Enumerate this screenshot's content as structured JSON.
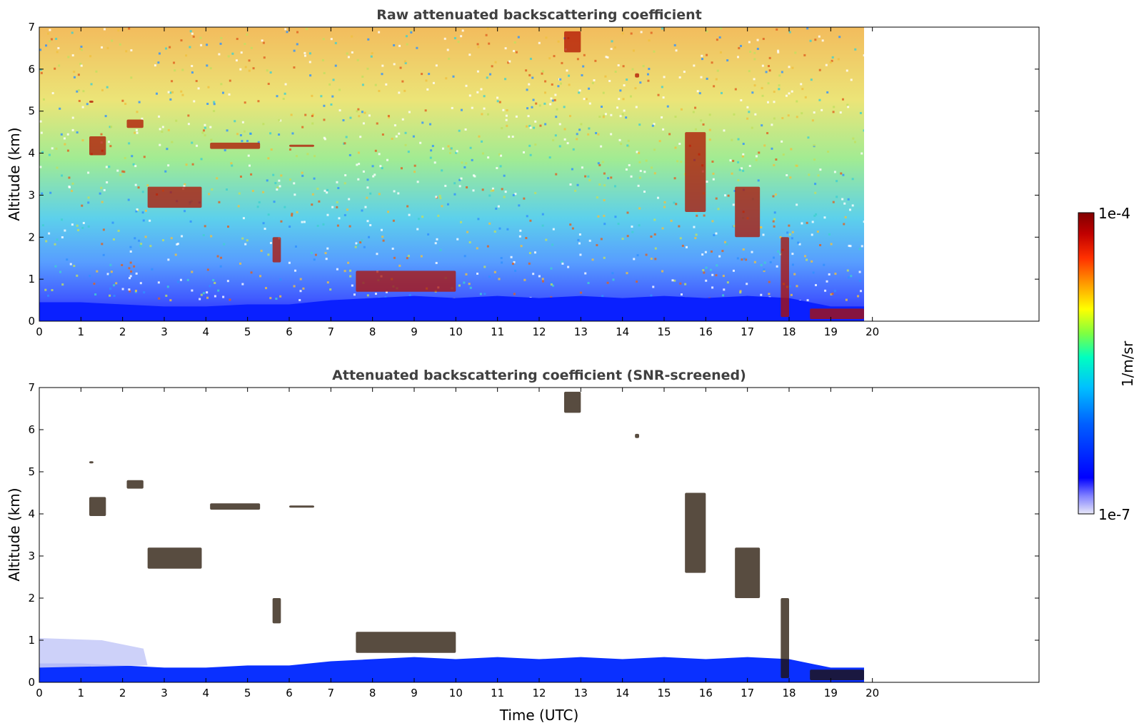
{
  "chart_data": [
    {
      "type": "heatmap",
      "title": "Raw attenuated backscattering coefficient",
      "xlabel": "",
      "ylabel": "Altitude (km)",
      "xlim": [
        0,
        24
      ],
      "ylim": [
        0,
        7
      ],
      "x_ticks": [
        "0",
        "1",
        "2",
        "3",
        "4",
        "5",
        "6",
        "7",
        "8",
        "9",
        "10",
        "11",
        "12",
        "13",
        "14",
        "15",
        "16",
        "17",
        "18",
        "19",
        "20"
      ],
      "y_ticks": [
        "0",
        "1",
        "2",
        "3",
        "4",
        "5",
        "6",
        "7"
      ],
      "data_end_time_utc": 19.8,
      "colormap": "jet",
      "scale": "log",
      "boundary_layer_top_km": [
        [
          0,
          0.45
        ],
        [
          1,
          0.45
        ],
        [
          2,
          0.4
        ],
        [
          3,
          0.35
        ],
        [
          4,
          0.35
        ],
        [
          5,
          0.4
        ],
        [
          6,
          0.4
        ],
        [
          7,
          0.5
        ],
        [
          8,
          0.55
        ],
        [
          9,
          0.6
        ],
        [
          10,
          0.55
        ],
        [
          11,
          0.6
        ],
        [
          12,
          0.55
        ],
        [
          13,
          0.6
        ],
        [
          14,
          0.55
        ],
        [
          15,
          0.6
        ],
        [
          16,
          0.55
        ],
        [
          17,
          0.6
        ],
        [
          18,
          0.55
        ],
        [
          19,
          0.35
        ],
        [
          19.8,
          0.35
        ]
      ],
      "cloud_features": [
        {
          "t": [
            1.2,
            1.3
          ],
          "z": [
            5.2,
            5.25
          ]
        },
        {
          "t": [
            1.2,
            1.6
          ],
          "z": [
            3.95,
            4.4
          ]
        },
        {
          "t": [
            2.1,
            2.5
          ],
          "z": [
            4.6,
            4.8
          ]
        },
        {
          "t": [
            2.6,
            3.9
          ],
          "z": [
            2.7,
            3.2
          ]
        },
        {
          "t": [
            4.1,
            5.3
          ],
          "z": [
            4.1,
            4.25
          ]
        },
        {
          "t": [
            6.0,
            6.6
          ],
          "z": [
            4.15,
            4.2
          ]
        },
        {
          "t": [
            5.6,
            5.8
          ],
          "z": [
            1.4,
            2.0
          ]
        },
        {
          "t": [
            7.6,
            10.0
          ],
          "z": [
            0.7,
            1.2
          ]
        },
        {
          "t": [
            12.6,
            13.0
          ],
          "z": [
            6.4,
            6.9
          ]
        },
        {
          "t": [
            14.3,
            14.4
          ],
          "z": [
            5.8,
            5.9
          ]
        },
        {
          "t": [
            15.5,
            16.0
          ],
          "z": [
            2.6,
            4.5
          ]
        },
        {
          "t": [
            16.7,
            17.3
          ],
          "z": [
            2.0,
            3.2
          ]
        },
        {
          "t": [
            17.8,
            18.0
          ],
          "z": [
            0.1,
            2.0
          ]
        },
        {
          "t": [
            18.5,
            19.8
          ],
          "z": [
            0.05,
            0.3
          ]
        }
      ]
    },
    {
      "type": "heatmap",
      "title": "Attenuated backscattering coefficient (SNR-screened)",
      "xlabel": "Time (UTC)",
      "ylabel": "Altitude (km)",
      "xlim": [
        0,
        24
      ],
      "ylim": [
        0,
        7
      ],
      "x_ticks": [
        "0",
        "1",
        "2",
        "3",
        "4",
        "5",
        "6",
        "7",
        "8",
        "9",
        "10",
        "11",
        "12",
        "13",
        "14",
        "15",
        "16",
        "17",
        "18",
        "19",
        "20"
      ],
      "y_ticks": [
        "0",
        "1",
        "2",
        "3",
        "4",
        "5",
        "6",
        "7"
      ],
      "data_end_time_utc": 19.8,
      "colormap": "jet",
      "scale": "log"
    }
  ],
  "colorbar": {
    "min_label": "1e-7",
    "max_label": "1e-4",
    "label": "1/m/sr",
    "scale": "log",
    "colors": [
      "#e8e8f8",
      "#8080ff",
      "#0000ff",
      "#0060ff",
      "#00c0ff",
      "#00ffc0",
      "#80ff40",
      "#ffff00",
      "#ffa000",
      "#ff3000",
      "#c00000",
      "#800000"
    ]
  }
}
